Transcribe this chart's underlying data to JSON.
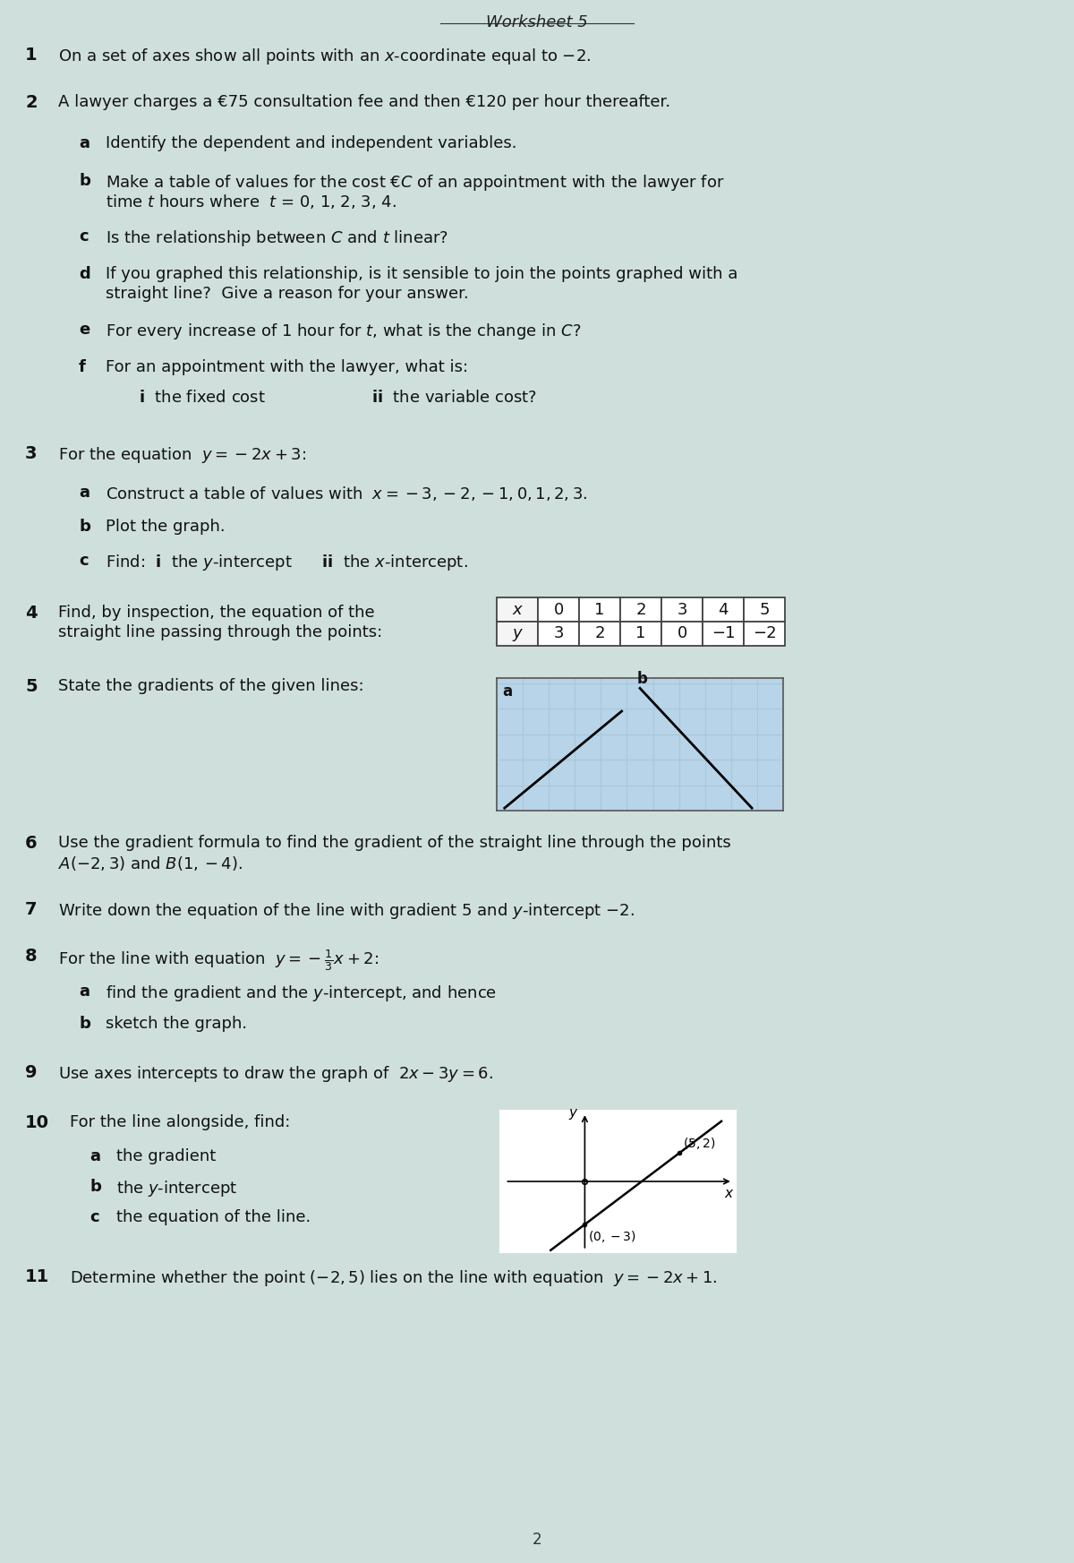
{
  "title": "Worksheet 5",
  "bg_color": "#cfe0dc",
  "q1": "On a set of axes show all points with an $x$-coordinate equal to −2.",
  "q2_main": "A lawyer charges a €75 consultation fee and then €120 per hour thereafter.",
  "q2a": "Identify the dependent and independent variables.",
  "q2b1": "Make a table of values for the cost €$C$ of an appointment with the lawyer for",
  "q2b2": "time $t$ hours where  $t$ = 0, 1, 2, 3, 4.",
  "q2c": "Is the relationship between $C$ and $t$ linear?",
  "q2d1": "If you graphed this relationship, is it sensible to join the points graphed with a",
  "q2d2": "straight line?  Give a reason for your answer.",
  "q2e": "For every increase of 1 hour for $t$, what is the change in $C$?",
  "q2f": "For an appointment with the lawyer, what is:",
  "q2fi": "the fixed cost",
  "q2fii": "the variable cost?",
  "q3_main": "For the equation  $y = -2x + 3$:",
  "q3a": "Construct a table of values with  $x = -3, -2, -1, 0, 1, 2, 3$.",
  "q3b": "Plot the graph.",
  "q3c": "Find:  $\\mathbf{i}$  the $y$-intercept      $\\mathbf{ii}$  the $x$-intercept.",
  "q4_1": "Find, by inspection, the equation of the",
  "q4_2": "straight line passing through the points:",
  "table4_x": [
    "x",
    "0",
    "1",
    "2",
    "3",
    "4",
    "5"
  ],
  "table4_y": [
    "y",
    "3",
    "2",
    "1",
    "0",
    "−1",
    "−2"
  ],
  "q5": "State the gradients of the given lines:",
  "q6_1": "Use the gradient formula to find the gradient of the straight line through the points",
  "q6_2": "$A(-2, 3)$ and $B(1, -4)$.",
  "q7": "Write down the equation of the line with gradient 5 and $y$-intercept $-2$.",
  "q8_main": "For the line with equation  $y = -\\frac{1}{3}x + 2$:",
  "q8a": "find the gradient and the $y$-intercept, and hence",
  "q8b": "sketch the graph.",
  "q9": "Use axes intercepts to draw the graph of  $2x - 3y = 6$.",
  "q10_main": "For the line alongside, find:",
  "q10a": "the gradient",
  "q10b": "the $y$-intercept",
  "q10c": "the equation of the line.",
  "q11": "Determine whether the point $(-2, 5)$ lies on the line with equation  $y = -2x + 1$.",
  "footer": "2",
  "grid_color": "#a8c8d8",
  "grid_bg": "#b8d4e8",
  "table_border": "#444444",
  "text_color": "#111111"
}
